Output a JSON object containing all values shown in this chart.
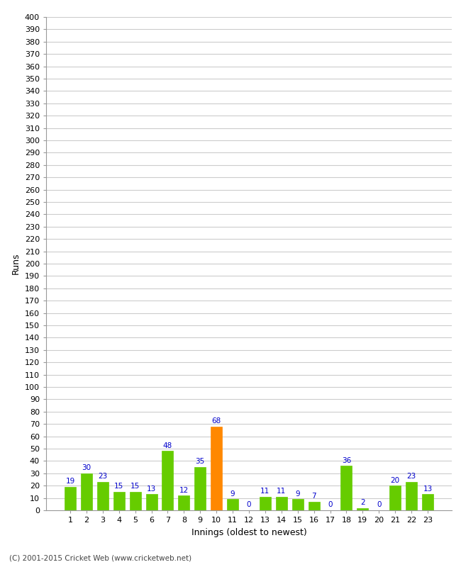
{
  "xlabel": "Innings (oldest to newest)",
  "ylabel": "Runs",
  "categories": [
    1,
    2,
    3,
    4,
    5,
    6,
    7,
    8,
    9,
    10,
    11,
    12,
    13,
    14,
    15,
    16,
    17,
    18,
    19,
    20,
    21,
    22,
    23
  ],
  "values": [
    19,
    30,
    23,
    15,
    15,
    13,
    48,
    12,
    35,
    68,
    9,
    0,
    11,
    11,
    9,
    7,
    0,
    36,
    2,
    0,
    20,
    23,
    13
  ],
  "bar_colors": [
    "#66cc00",
    "#66cc00",
    "#66cc00",
    "#66cc00",
    "#66cc00",
    "#66cc00",
    "#66cc00",
    "#66cc00",
    "#66cc00",
    "#ff8800",
    "#66cc00",
    "#66cc00",
    "#66cc00",
    "#66cc00",
    "#66cc00",
    "#66cc00",
    "#66cc00",
    "#66cc00",
    "#66cc00",
    "#66cc00",
    "#66cc00",
    "#66cc00",
    "#66cc00"
  ],
  "ylim": [
    0,
    400
  ],
  "yticks": [
    0,
    10,
    20,
    30,
    40,
    50,
    60,
    70,
    80,
    90,
    100,
    110,
    120,
    130,
    140,
    150,
    160,
    170,
    180,
    190,
    200,
    210,
    220,
    230,
    240,
    250,
    260,
    270,
    280,
    290,
    300,
    310,
    320,
    330,
    340,
    350,
    360,
    370,
    380,
    390,
    400
  ],
  "label_color": "#0000cc",
  "grid_color": "#cccccc",
  "background_color": "#ffffff",
  "footer": "(C) 2001-2015 Cricket Web (www.cricketweb.net)",
  "bar_width": 0.7,
  "tick_fontsize": 8,
  "axis_label_fontsize": 9,
  "value_label_fontsize": 7.5
}
